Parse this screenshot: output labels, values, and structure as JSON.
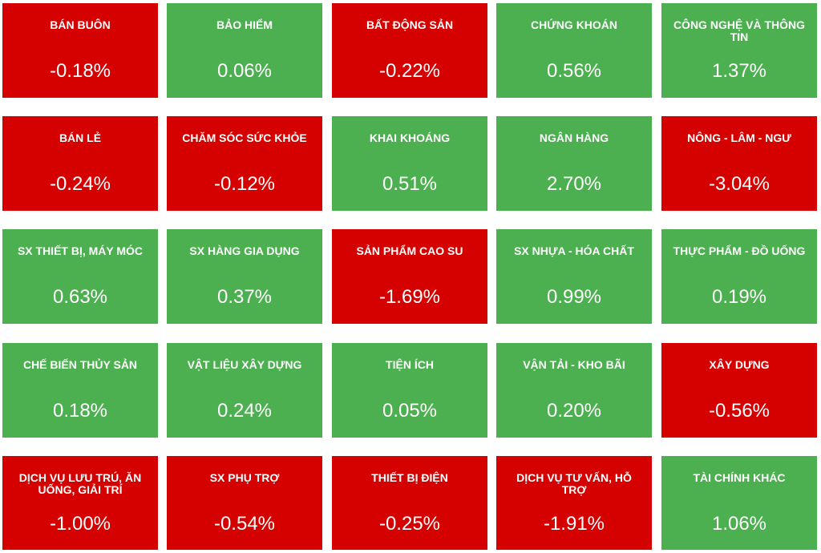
{
  "colors": {
    "up": "#4caf50",
    "down": "#d50000",
    "text": "#ffffff"
  },
  "sectors": [
    {
      "name": "BÁN BUÔN",
      "change": "-0.18%",
      "direction": "down"
    },
    {
      "name": "BẢO HIỂM",
      "change": "0.06%",
      "direction": "up"
    },
    {
      "name": "BẤT ĐỘNG SẢN",
      "change": "-0.22%",
      "direction": "down"
    },
    {
      "name": "CHỨNG KHOÁN",
      "change": "0.56%",
      "direction": "up"
    },
    {
      "name": "CÔNG NGHỆ VÀ THÔNG TIN",
      "change": "1.37%",
      "direction": "up"
    },
    {
      "name": "BÁN LẺ",
      "change": "-0.24%",
      "direction": "down"
    },
    {
      "name": "CHĂM SÓC SỨC KHỎE",
      "change": "-0.12%",
      "direction": "down"
    },
    {
      "name": "KHAI KHOÁNG",
      "change": "0.51%",
      "direction": "up"
    },
    {
      "name": "NGÂN HÀNG",
      "change": "2.70%",
      "direction": "up"
    },
    {
      "name": "NÔNG - LÂM - NGƯ",
      "change": "-3.04%",
      "direction": "down"
    },
    {
      "name": "SX THIẾT BỊ, MÁY MÓC",
      "change": "0.63%",
      "direction": "up"
    },
    {
      "name": "SX HÀNG GIA DỤNG",
      "change": "0.37%",
      "direction": "up"
    },
    {
      "name": "SẢN PHẨM CAO SU",
      "change": "-1.69%",
      "direction": "down"
    },
    {
      "name": "SX NHỰA - HÓA CHẤT",
      "change": "0.99%",
      "direction": "up"
    },
    {
      "name": "THỰC PHẨM - ĐỒ UỐNG",
      "change": "0.19%",
      "direction": "up"
    },
    {
      "name": "CHẾ BIẾN THỦY SẢN",
      "change": "0.18%",
      "direction": "up"
    },
    {
      "name": "VẬT LIỆU XÂY DỰNG",
      "change": "0.24%",
      "direction": "up"
    },
    {
      "name": "TIỆN ÍCH",
      "change": "0.05%",
      "direction": "up"
    },
    {
      "name": "VẬN TẢI - KHO BÃI",
      "change": "0.20%",
      "direction": "up"
    },
    {
      "name": "XÂY DỰNG",
      "change": "-0.56%",
      "direction": "down"
    },
    {
      "name": "DỊCH VỤ LƯU TRÚ, ĂN UỐNG, GIẢI TRÍ",
      "change": "-1.00%",
      "direction": "down"
    },
    {
      "name": "SX PHỤ TRỢ",
      "change": "-0.54%",
      "direction": "down"
    },
    {
      "name": "THIẾT BỊ ĐIỆN",
      "change": "-0.25%",
      "direction": "down"
    },
    {
      "name": "DỊCH VỤ TƯ VẤN, HỖ TRỢ",
      "change": "-1.91%",
      "direction": "down"
    },
    {
      "name": "TÀI CHÍNH KHÁC",
      "change": "1.06%",
      "direction": "up"
    }
  ]
}
